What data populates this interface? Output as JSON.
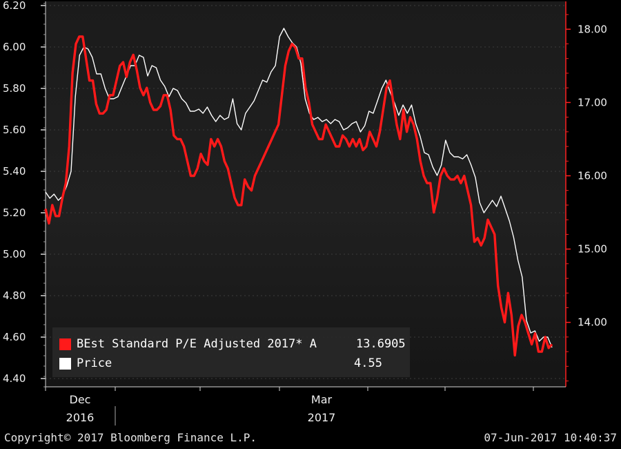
{
  "chart_data": {
    "type": "line",
    "y_left": {
      "ticks": [
        "6.20",
        "6.00",
        "5.80",
        "5.60",
        "5.40",
        "5.20",
        "5.00",
        "4.80",
        "4.60",
        "4.40"
      ],
      "range": [
        4.36,
        6.22
      ]
    },
    "y_right": {
      "ticks": [
        "18.00",
        "17.00",
        "16.00",
        "15.00",
        "14.00"
      ],
      "range": [
        13.12,
        18.38
      ]
    },
    "x_labels": [
      {
        "month": "Dec",
        "year": "2016"
      },
      {
        "month": "Mar",
        "year": "2017"
      }
    ],
    "series": [
      {
        "name": "BEst Standard P/E Adjusted 2017* A",
        "last_value": "13.6905",
        "axis": "right",
        "color": "#ff1a1a",
        "values": [
          15.55,
          15.35,
          15.6,
          15.45,
          15.45,
          15.7,
          15.9,
          16.4,
          17.4,
          17.8,
          17.9,
          17.9,
          17.6,
          17.3,
          17.3,
          16.98,
          16.85,
          16.85,
          16.9,
          17.1,
          17.1,
          17.3,
          17.5,
          17.55,
          17.35,
          17.55,
          17.65,
          17.45,
          17.2,
          17.1,
          17.2,
          17.0,
          16.9,
          16.9,
          16.95,
          17.1,
          17.1,
          16.9,
          16.55,
          16.5,
          16.5,
          16.4,
          16.2,
          16.0,
          16.0,
          16.1,
          16.3,
          16.2,
          16.15,
          16.5,
          16.4,
          16.5,
          16.4,
          16.2,
          16.1,
          15.9,
          15.7,
          15.6,
          15.6,
          15.95,
          15.85,
          15.8,
          16.0,
          16.1,
          16.2,
          16.3,
          16.4,
          16.5,
          16.6,
          16.7,
          17.1,
          17.5,
          17.7,
          17.8,
          17.75,
          17.6,
          17.6,
          17.2,
          17.0,
          16.7,
          16.6,
          16.5,
          16.5,
          16.7,
          16.6,
          16.5,
          16.4,
          16.4,
          16.55,
          16.5,
          16.4,
          16.5,
          16.4,
          16.5,
          16.35,
          16.4,
          16.6,
          16.5,
          16.4,
          16.6,
          16.9,
          17.2,
          17.3,
          17.0,
          16.7,
          16.5,
          16.9,
          16.6,
          16.8,
          16.7,
          16.5,
          16.2,
          16.0,
          15.9,
          15.9,
          15.5,
          15.7,
          16.0,
          16.1,
          16.0,
          15.95,
          15.95,
          16.0,
          15.9,
          16.0,
          15.8,
          15.6,
          15.1,
          15.15,
          15.05,
          15.15,
          15.4,
          15.3,
          15.2,
          14.5,
          14.2,
          14.0,
          14.4,
          14.1,
          13.55,
          13.95,
          14.1,
          14.0,
          13.85,
          13.7,
          13.85,
          13.6,
          13.6,
          13.8,
          13.65,
          13.7
        ]
      },
      {
        "name": "Price",
        "last_value": "4.55",
        "axis": "left",
        "color": "#ffffff",
        "values": [
          5.3,
          5.27,
          5.29,
          5.26,
          5.28,
          5.33,
          5.4,
          5.76,
          5.96,
          6.0,
          5.99,
          5.95,
          5.87,
          5.87,
          5.8,
          5.75,
          5.75,
          5.76,
          5.81,
          5.86,
          5.91,
          5.91,
          5.96,
          5.95,
          5.86,
          5.91,
          5.9,
          5.84,
          5.81,
          5.76,
          5.8,
          5.79,
          5.75,
          5.73,
          5.69,
          5.69,
          5.7,
          5.68,
          5.71,
          5.67,
          5.64,
          5.67,
          5.65,
          5.66,
          5.75,
          5.63,
          5.6,
          5.68,
          5.71,
          5.74,
          5.79,
          5.84,
          5.83,
          5.88,
          5.91,
          6.05,
          6.09,
          6.05,
          6.02,
          6.0,
          5.92,
          5.75,
          5.68,
          5.65,
          5.66,
          5.64,
          5.65,
          5.63,
          5.65,
          5.64,
          5.6,
          5.61,
          5.63,
          5.64,
          5.59,
          5.62,
          5.69,
          5.68,
          5.74,
          5.8,
          5.84,
          5.78,
          5.73,
          5.67,
          5.72,
          5.68,
          5.72,
          5.63,
          5.57,
          5.49,
          5.48,
          5.42,
          5.38,
          5.43,
          5.55,
          5.49,
          5.47,
          5.47,
          5.46,
          5.48,
          5.43,
          5.37,
          5.25,
          5.2,
          5.23,
          5.26,
          5.23,
          5.28,
          5.22,
          5.16,
          5.08,
          4.97,
          4.89,
          4.68,
          4.62,
          4.63,
          4.58,
          4.6,
          4.6,
          4.55
        ]
      }
    ],
    "footer_left": "Copyright© 2017 Bloomberg Finance L.P.",
    "footer_right": "07-Jun-2017 10:40:37"
  }
}
